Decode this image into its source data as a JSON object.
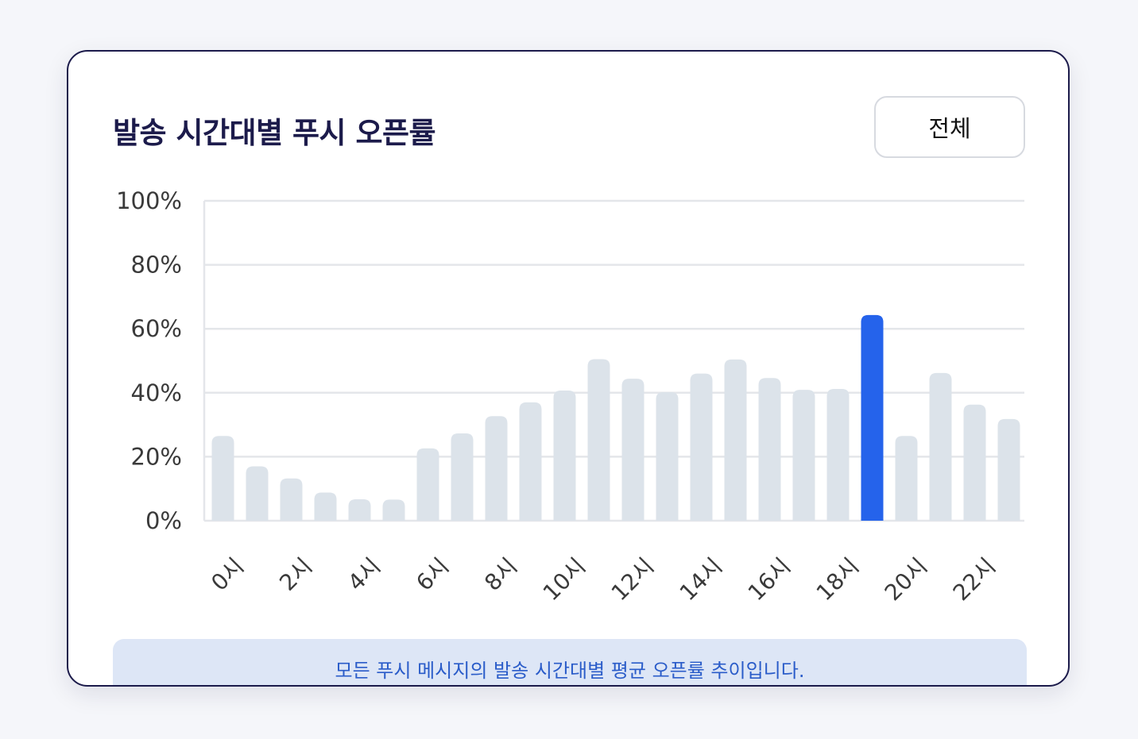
{
  "card": {
    "title": "발송 시간대별 푸시 오픈률",
    "filter_label": "전체",
    "info_text": "모든 푸시 메시지의 발송 시간대별 평균 오픈률 추이입니다."
  },
  "colors": {
    "bar_default": "#dce3ea",
    "bar_highlight": "#2563eb",
    "gridline": "#e4e6ea",
    "axis_text": "#3a3a3a",
    "title": "#1c1b4b"
  },
  "chart_data": {
    "type": "bar",
    "title": "발송 시간대별 푸시 오픈률",
    "xlabel": "",
    "ylabel": "",
    "ylim": [
      0,
      100
    ],
    "y_ticks": [
      "0%",
      "20%",
      "40%",
      "60%",
      "80%",
      "100%"
    ],
    "y_tick_values": [
      0,
      20,
      40,
      60,
      80,
      100
    ],
    "hours": [
      0,
      1,
      2,
      3,
      4,
      5,
      6,
      7,
      8,
      9,
      10,
      11,
      12,
      13,
      14,
      15,
      16,
      17,
      18,
      19,
      20,
      21,
      22,
      23
    ],
    "x_tick_labels": [
      "0시",
      "2시",
      "4시",
      "6시",
      "8시",
      "10시",
      "12시",
      "14시",
      "16시",
      "18시",
      "20시",
      "22시"
    ],
    "x_tick_hours": [
      0,
      2,
      4,
      6,
      8,
      10,
      12,
      14,
      16,
      18,
      20,
      22
    ],
    "values": [
      26.5,
      17,
      13.2,
      8.8,
      6.7,
      6.6,
      22.6,
      27.3,
      32.7,
      37,
      40.7,
      50.5,
      44.4,
      40.2,
      46,
      50.4,
      44.6,
      40.9,
      41.2,
      64.3,
      26.5,
      46.2,
      36.3,
      31.8
    ],
    "highlight_hour": 19,
    "grid": true,
    "legend": "none"
  }
}
